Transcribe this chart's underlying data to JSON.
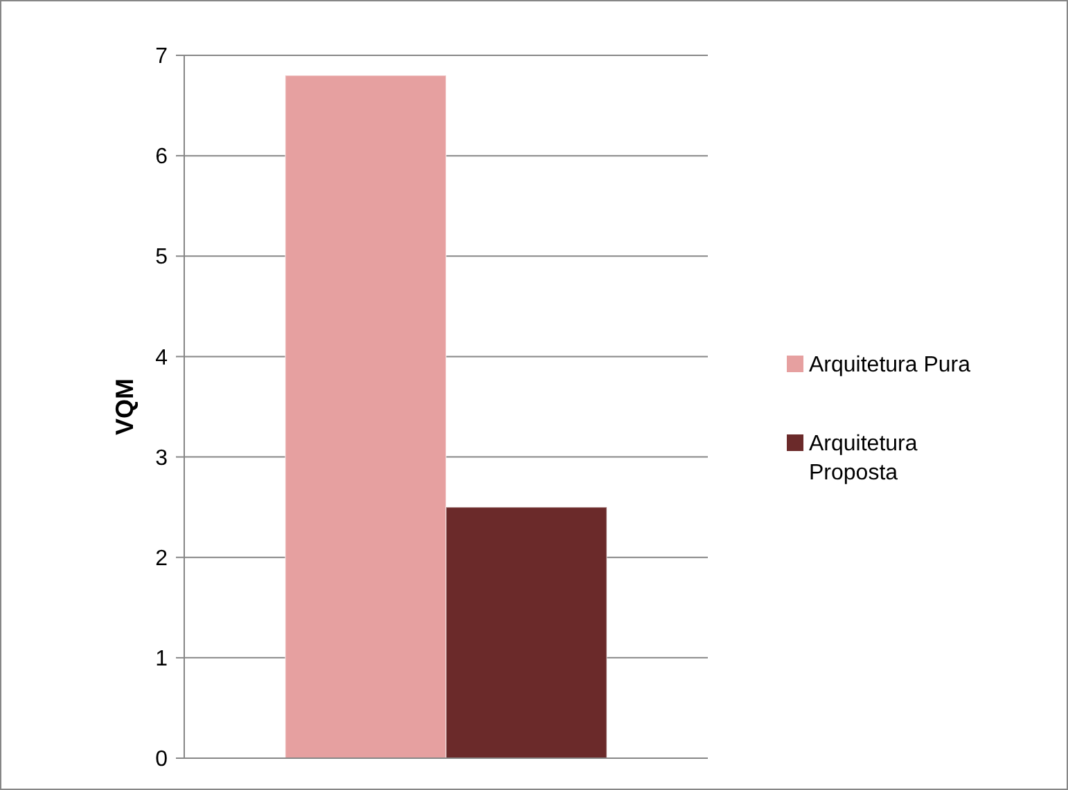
{
  "chart_data": {
    "type": "bar",
    "ylabel": "VQM",
    "categories": [
      null
    ],
    "series": [
      {
        "name": "Arquitetura Pura",
        "color": "#e6a0a0",
        "values": [
          6.8
        ]
      },
      {
        "name": "Arquitetura Proposta",
        "color": "#6b2a2a",
        "values": [
          2.5
        ]
      }
    ],
    "ylim": [
      0,
      7
    ],
    "yticks": [
      0,
      1,
      2,
      3,
      4,
      5,
      6,
      7
    ],
    "grid": "y",
    "legend": "right"
  }
}
